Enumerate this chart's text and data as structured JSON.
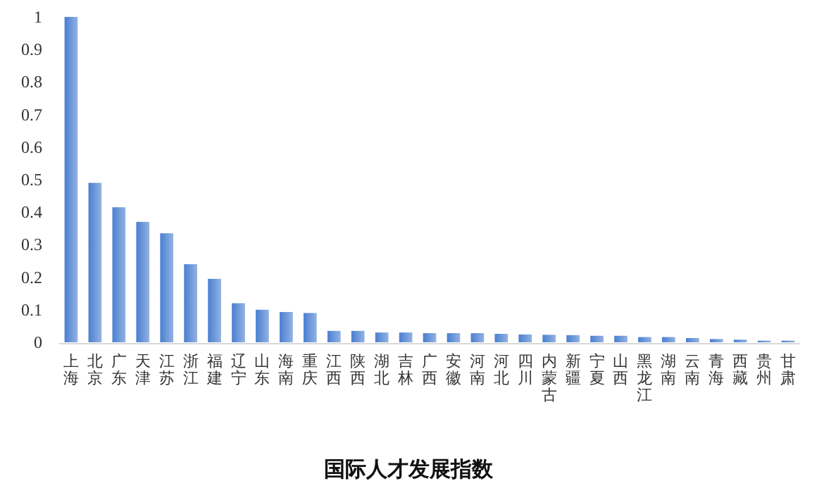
{
  "chart_data": {
    "type": "bar",
    "title": "国际人才发展指数",
    "categories": [
      "上海",
      "北京",
      "广东",
      "天津",
      "江苏",
      "浙江",
      "福建",
      "辽宁",
      "山东",
      "海南",
      "重庆",
      "江西",
      "陕西",
      "湖北",
      "吉林",
      "广西",
      "安徽",
      "河南",
      "河北",
      "四川",
      "内蒙古",
      "新疆",
      "宁夏",
      "山西",
      "黑龙江",
      "湖南",
      "云南",
      "青海",
      "西藏",
      "贵州",
      "甘肃"
    ],
    "values": [
      1.0,
      0.49,
      0.415,
      0.37,
      0.335,
      0.24,
      0.195,
      0.12,
      0.1,
      0.093,
      0.09,
      0.035,
      0.035,
      0.03,
      0.03,
      0.028,
      0.028,
      0.028,
      0.026,
      0.024,
      0.023,
      0.022,
      0.02,
      0.02,
      0.016,
      0.016,
      0.013,
      0.01,
      0.008,
      0.005,
      0.005
    ],
    "color": "#4a7fd0",
    "ylim": [
      0,
      1
    ],
    "yticks": [
      0,
      0.1,
      0.2,
      0.3,
      0.4,
      0.5,
      0.6,
      0.7,
      0.8,
      0.9,
      1
    ]
  }
}
